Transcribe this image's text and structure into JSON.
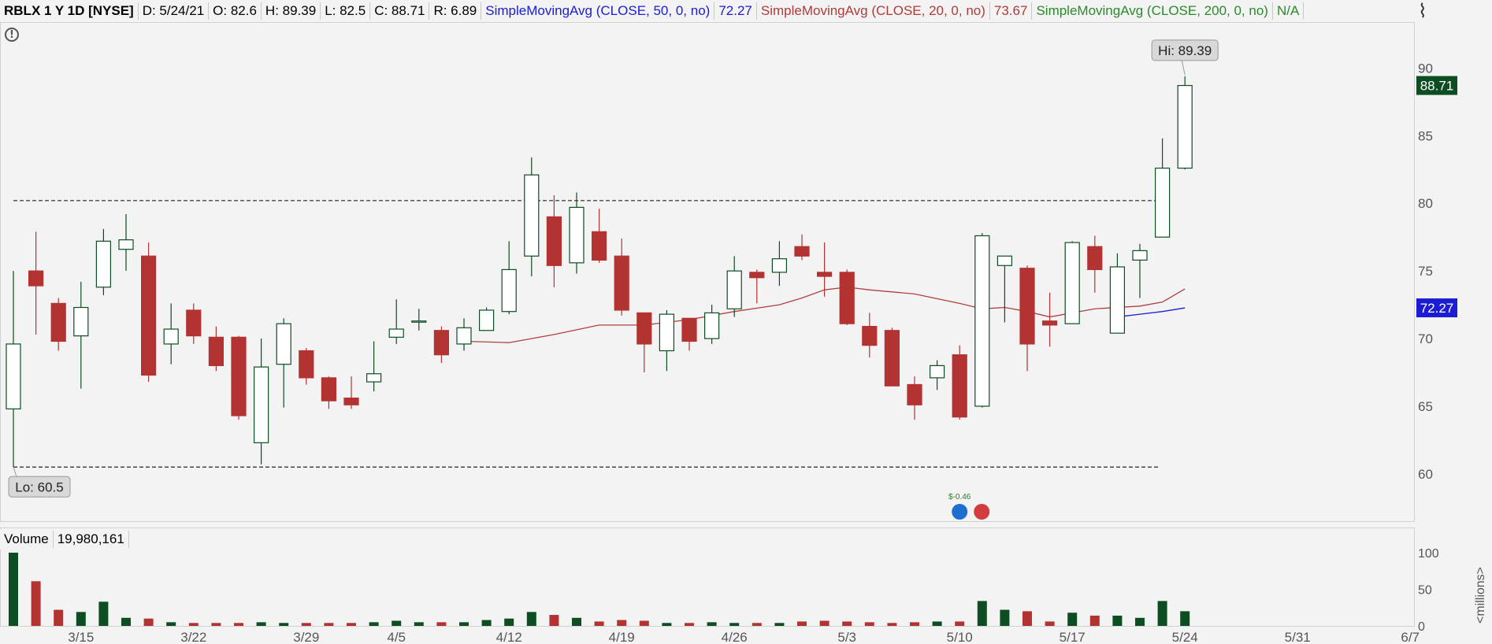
{
  "header": {
    "symbol": "RBLX 1 Y 1D [NYSE]",
    "date": "D: 5/24/21",
    "open": "O: 82.6",
    "high": "H: 89.39",
    "low": "L: 82.5",
    "close": "C: 88.71",
    "range": "R: 6.89",
    "sma50_label": "SimpleMovingAvg (CLOSE, 50, 0, no)",
    "sma50_value": "72.27",
    "sma20_label": "SimpleMovingAvg (CLOSE, 20, 0, no)",
    "sma20_value": "73.67",
    "sma200_label": "SimpleMovingAvg (CLOSE, 200, 0, no)",
    "sma200_value": "N/A"
  },
  "volume_header": {
    "label": "Volume",
    "value": "19,980,161"
  },
  "colors": {
    "up": "#0d4d22",
    "down": "#b33232",
    "sma20": "#b04040",
    "sma50": "#1c1cd4",
    "background": "#f3f3f3"
  },
  "chart_data": {
    "type": "candlestick",
    "x_ticks": [
      "3/15",
      "3/22",
      "3/29",
      "4/5",
      "4/12",
      "4/19",
      "4/26",
      "5/3",
      "5/10",
      "5/17",
      "5/24",
      "5/31",
      "6/7"
    ],
    "x_tick_index": [
      3,
      8,
      13,
      17,
      22,
      27,
      32,
      37,
      42,
      47,
      52,
      57,
      62
    ],
    "y_ticks": [
      60,
      65,
      70,
      75,
      80,
      85,
      90
    ],
    "ylim": [
      56.5,
      93.4
    ],
    "volume_ticks": [
      0,
      50,
      100
    ],
    "volume_ylim": [
      0,
      100
    ],
    "volume_axis_label": "<millions>",
    "candles": [
      {
        "o": 64.8,
        "h": 75,
        "l": 60.5,
        "c": 69.6
      },
      {
        "o": 75,
        "h": 77.9,
        "l": 70.3,
        "c": 73.9
      },
      {
        "o": 72.6,
        "h": 73,
        "l": 69.1,
        "c": 69.8
      },
      {
        "o": 70.2,
        "h": 74.2,
        "l": 66.3,
        "c": 72.3
      },
      {
        "o": 73.8,
        "h": 78.1,
        "l": 73.2,
        "c": 77.2
      },
      {
        "o": 76.6,
        "h": 79.2,
        "l": 75,
        "c": 77.3
      },
      {
        "o": 76.1,
        "h": 77.1,
        "l": 66.8,
        "c": 67.3
      },
      {
        "o": 69.6,
        "h": 72.6,
        "l": 68.1,
        "c": 70.7
      },
      {
        "o": 72.1,
        "h": 72.6,
        "l": 69.6,
        "c": 70.2
      },
      {
        "o": 70.1,
        "h": 70.9,
        "l": 67.6,
        "c": 68
      },
      {
        "o": 70.1,
        "h": 70.2,
        "l": 64,
        "c": 64.3
      },
      {
        "o": 62.3,
        "h": 70,
        "l": 60.7,
        "c": 67.9
      },
      {
        "o": 68.1,
        "h": 71.5,
        "l": 64.9,
        "c": 71.1
      },
      {
        "o": 69.1,
        "h": 69.3,
        "l": 66.6,
        "c": 67.1
      },
      {
        "o": 67.1,
        "h": 67.2,
        "l": 64.8,
        "c": 65.4
      },
      {
        "o": 65.6,
        "h": 67.2,
        "l": 64.8,
        "c": 65.1
      },
      {
        "o": 66.8,
        "h": 69.8,
        "l": 66.1,
        "c": 67.4
      },
      {
        "o": 70.1,
        "h": 72.9,
        "l": 69.6,
        "c": 70.7
      },
      {
        "o": 71.3,
        "h": 72.2,
        "l": 70.6,
        "c": 71.3
      },
      {
        "o": 70.6,
        "h": 70.9,
        "l": 68.2,
        "c": 68.8
      },
      {
        "o": 69.6,
        "h": 71.5,
        "l": 69.1,
        "c": 70.8
      },
      {
        "o": 70.6,
        "h": 72.3,
        "l": 70.6,
        "c": 72.1
      },
      {
        "o": 72,
        "h": 77.2,
        "l": 71.8,
        "c": 75.1
      },
      {
        "o": 76.1,
        "h": 83.4,
        "l": 74.6,
        "c": 82.1
      },
      {
        "o": 79,
        "h": 80.6,
        "l": 73.8,
        "c": 75.4
      },
      {
        "o": 75.6,
        "h": 80.8,
        "l": 74.8,
        "c": 79.7
      },
      {
        "o": 77.9,
        "h": 79.6,
        "l": 75.6,
        "c": 75.8
      },
      {
        "o": 76.1,
        "h": 77.4,
        "l": 71.7,
        "c": 72.1
      },
      {
        "o": 71.9,
        "h": 71.9,
        "l": 67.5,
        "c": 69.6
      },
      {
        "o": 69.1,
        "h": 72.1,
        "l": 67.6,
        "c": 71.8
      },
      {
        "o": 71.5,
        "h": 71.5,
        "l": 69.1,
        "c": 69.8
      },
      {
        "o": 70,
        "h": 72.5,
        "l": 69.6,
        "c": 71.9
      },
      {
        "o": 72.2,
        "h": 76.1,
        "l": 71.6,
        "c": 75
      },
      {
        "o": 74.9,
        "h": 75.1,
        "l": 72.6,
        "c": 74.5
      },
      {
        "o": 74.9,
        "h": 77.2,
        "l": 73.9,
        "c": 75.9
      },
      {
        "o": 76.8,
        "h": 77.7,
        "l": 75.8,
        "c": 76.1
      },
      {
        "o": 74.9,
        "h": 77.1,
        "l": 73.1,
        "c": 74.6
      },
      {
        "o": 74.9,
        "h": 75.1,
        "l": 71,
        "c": 71.1
      },
      {
        "o": 70.9,
        "h": 71.9,
        "l": 68.6,
        "c": 69.5
      },
      {
        "o": 70.6,
        "h": 70.8,
        "l": 66.5,
        "c": 66.5
      },
      {
        "o": 66.6,
        "h": 67.2,
        "l": 64,
        "c": 65.1
      },
      {
        "o": 67.1,
        "h": 68.4,
        "l": 66.2,
        "c": 68
      },
      {
        "o": 68.8,
        "h": 69.5,
        "l": 64,
        "c": 64.2
      },
      {
        "o": 65,
        "h": 77.8,
        "l": 64.9,
        "c": 77.6
      },
      {
        "o": 75.4,
        "h": 76,
        "l": 71.2,
        "c": 76.1
      },
      {
        "o": 75.2,
        "h": 75.4,
        "l": 67.6,
        "c": 69.6
      },
      {
        "o": 71.3,
        "h": 73.4,
        "l": 69.4,
        "c": 71
      },
      {
        "o": 71.1,
        "h": 77.2,
        "l": 71.1,
        "c": 77.1
      },
      {
        "o": 76.8,
        "h": 77.6,
        "l": 73.4,
        "c": 75.1
      },
      {
        "o": 70.4,
        "h": 76.3,
        "l": 70.4,
        "c": 75.3
      },
      {
        "o": 75.8,
        "h": 77,
        "l": 73,
        "c": 76.5
      },
      {
        "o": 77.5,
        "h": 84.8,
        "l": 77.5,
        "c": 82.6
      },
      {
        "o": 82.6,
        "h": 89.39,
        "l": 82.5,
        "c": 88.71
      }
    ],
    "volumes": [
      100,
      61,
      22,
      19,
      33,
      11,
      10,
      5,
      4,
      4,
      4,
      5,
      4,
      4,
      4,
      4,
      5,
      7,
      5,
      5,
      5,
      8,
      10,
      19,
      15,
      11,
      6,
      8,
      7,
      4,
      4,
      5,
      4,
      4,
      4,
      6,
      7,
      6,
      5,
      4,
      5,
      6,
      6,
      34,
      22,
      20,
      6,
      18,
      14,
      14,
      11,
      34,
      20
    ],
    "sma20": [
      [
        20,
        69.8
      ],
      [
        22,
        69.7
      ],
      [
        24,
        70.3
      ],
      [
        26,
        71
      ],
      [
        28,
        71
      ],
      [
        30,
        71.4
      ],
      [
        32,
        72
      ],
      [
        34,
        72.5
      ],
      [
        35,
        73
      ],
      [
        36,
        73.6
      ],
      [
        37,
        73.8
      ],
      [
        38,
        73.6
      ],
      [
        40,
        73.3
      ],
      [
        42,
        72.6
      ],
      [
        43,
        72.2
      ],
      [
        44,
        72.3
      ],
      [
        45,
        72
      ],
      [
        46,
        71.6
      ],
      [
        48,
        72.2
      ],
      [
        50,
        72.4
      ],
      [
        51,
        72.7
      ],
      [
        52,
        73.67
      ]
    ],
    "sma50": [
      [
        49,
        71.6
      ],
      [
        50,
        71.8
      ],
      [
        51,
        72
      ],
      [
        52,
        72.27
      ]
    ],
    "hline_resistance": 80.2,
    "hline_support": 60.5,
    "hi_label": "Hi: 89.39",
    "lo_label": "Lo: 60.5",
    "price_tag_close": "88.71",
    "price_tag_sma50": "72.27",
    "earnings_label": "$-0.46"
  }
}
